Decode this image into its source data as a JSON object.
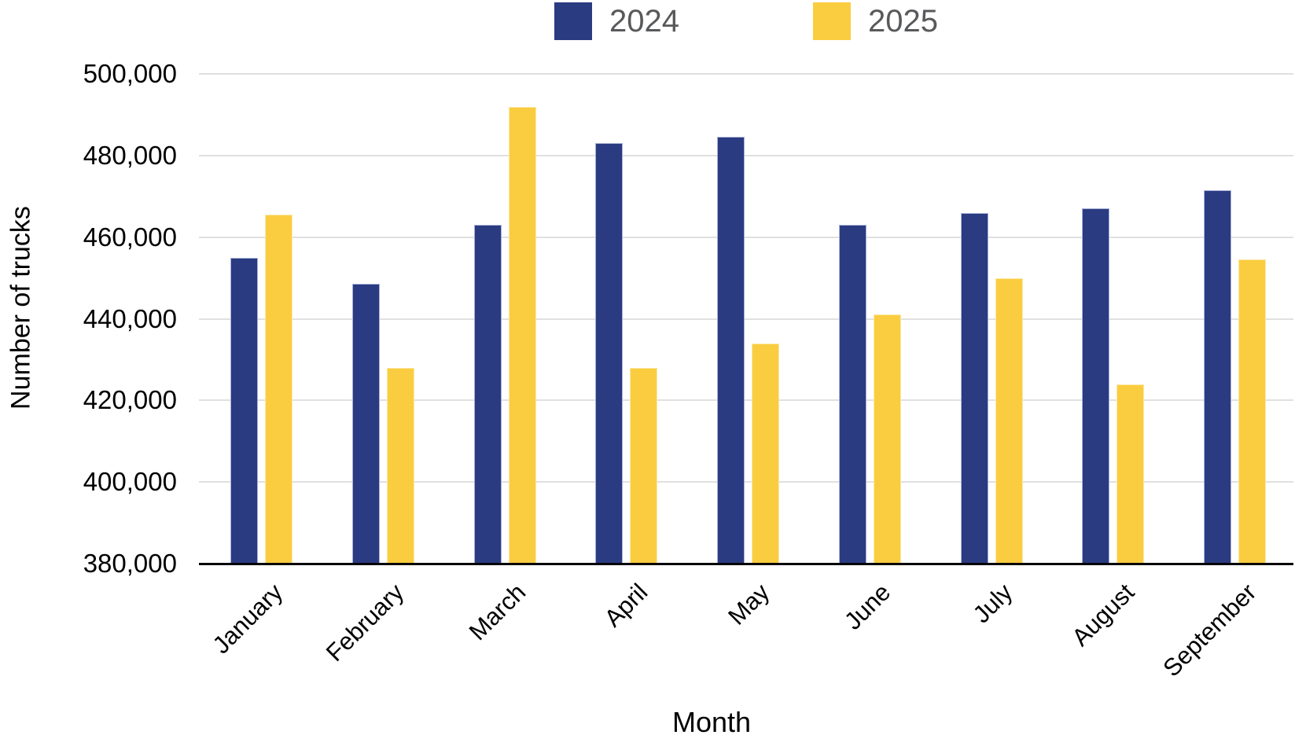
{
  "chart_data": {
    "type": "bar",
    "title": "",
    "xlabel": "Month",
    "ylabel": "Number of trucks",
    "categories": [
      "January",
      "February",
      "March",
      "April",
      "May",
      "June",
      "July",
      "August",
      "September"
    ],
    "series": [
      {
        "name": "2024",
        "color": "#2A3B81",
        "border_color": "#A9B2D8",
        "values": [
          455000,
          448500,
          463000,
          483000,
          484500,
          463000,
          466000,
          467000,
          471500
        ]
      },
      {
        "name": "2025",
        "color": "#FACD40",
        "border_color": "#FCE8A8",
        "values": [
          465500,
          428000,
          492000,
          428000,
          434000,
          441000,
          450000,
          424000,
          454500
        ]
      }
    ],
    "ylim": [
      380000,
      500000
    ],
    "ytick_step": 20000,
    "ytick_labels": [
      "380,000",
      "400,000",
      "420,000",
      "440,000",
      "460,000",
      "480,000",
      "500,000"
    ],
    "grid": "horizontal",
    "legend_position": "top-center",
    "colors": {
      "gridline": "#E0E0E0",
      "axis_line": "#000000",
      "tick_text": "#000000",
      "legend_text": "#58595B"
    }
  }
}
